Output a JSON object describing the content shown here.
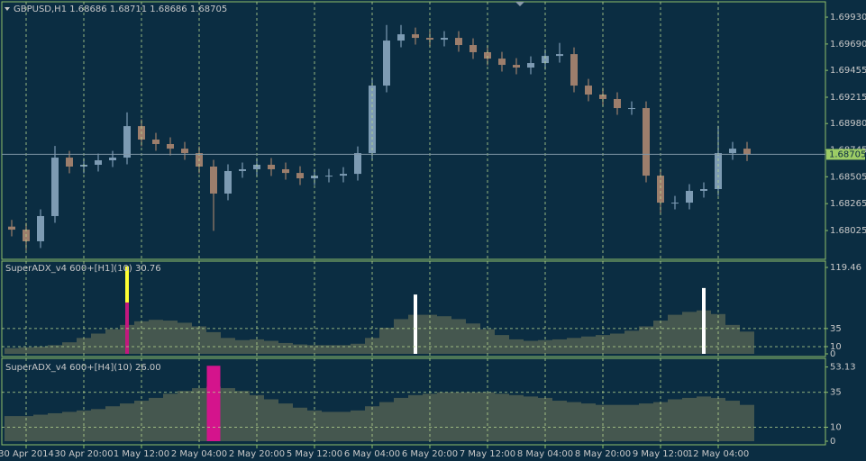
{
  "chart_data": [
    {
      "type": "candlestick",
      "title": "GBPUSD,H1  1.68686 1.68711 1.68686 1.68705",
      "categories": [
        null,
        "30 Apr 2014",
        null,
        null,
        null,
        "30 Apr 20:00",
        null,
        null,
        null,
        "1 May 12:00",
        null,
        null,
        null,
        "2 May 04:00",
        null,
        null,
        null,
        "2 May 20:00",
        null,
        null,
        null,
        "5 May 12:00",
        null,
        null,
        null,
        "6 May 04:00",
        null,
        null,
        null,
        "6 May 20:00",
        null,
        null,
        null,
        "7 May 12:00",
        null,
        null,
        null,
        "8 May 04:00",
        null,
        null,
        null,
        "8 May 20:00",
        null,
        null,
        null,
        "9 May 12:00",
        null,
        null,
        null,
        "12 May 04:00",
        null,
        null
      ],
      "open": [
        1.6806,
        1.68033,
        1.67929,
        1.68154,
        1.68676,
        1.68596,
        1.68612,
        1.68652,
        1.68676,
        1.68957,
        1.68837,
        1.68797,
        1.68756,
        1.68716,
        1.68596,
        1.68355,
        1.68556,
        1.68572,
        1.68612,
        1.68572,
        1.68539,
        1.68491,
        1.68515,
        1.68515,
        1.68531,
        1.68716,
        1.69319,
        1.69721,
        1.69777,
        1.69745,
        1.69729,
        1.69745,
        1.69681,
        1.69617,
        1.6956,
        1.69504,
        1.6948,
        1.6952,
        1.69584,
        1.696,
        1.69319,
        1.69239,
        1.69199,
        1.69118,
        1.69118,
        1.68515,
        1.68274,
        1.68274,
        1.68379,
        1.68395,
        1.68716,
        1.68756
      ],
      "high": [
        1.6812,
        1.68093,
        1.68214,
        1.6878,
        1.68736,
        1.68672,
        1.68712,
        1.68736,
        1.6908,
        1.69017,
        1.68897,
        1.68857,
        1.68816,
        1.68776,
        1.68656,
        1.68616,
        1.68632,
        1.68672,
        1.68672,
        1.68632,
        1.68599,
        1.68575,
        1.68575,
        1.68591,
        1.68776,
        1.69379,
        1.6986,
        1.6986,
        1.69837,
        1.69805,
        1.69805,
        1.69805,
        1.69741,
        1.69677,
        1.6962,
        1.69564,
        1.6958,
        1.69644,
        1.697,
        1.6966,
        1.69379,
        1.69299,
        1.69259,
        1.69178,
        1.69178,
        1.68575,
        1.68334,
        1.68439,
        1.68455,
        1.6896,
        1.68816,
        1.68816
      ],
      "low": [
        1.67973,
        1.6785,
        1.67869,
        1.68094,
        1.68536,
        1.68536,
        1.68552,
        1.68592,
        1.68616,
        1.68777,
        1.68737,
        1.68696,
        1.68656,
        1.68536,
        1.68022,
        1.68295,
        1.68496,
        1.68512,
        1.68512,
        1.68479,
        1.68431,
        1.68431,
        1.68455,
        1.68455,
        1.68471,
        1.68656,
        1.69259,
        1.69661,
        1.69685,
        1.69669,
        1.69669,
        1.69621,
        1.69557,
        1.695,
        1.69444,
        1.6942,
        1.6942,
        1.6946,
        1.69524,
        1.69259,
        1.69179,
        1.69139,
        1.69058,
        1.69058,
        1.68455,
        1.6818,
        1.68214,
        1.68214,
        1.68319,
        1.68335,
        1.68656,
        1.68645
      ],
      "close": [
        1.68033,
        1.67929,
        1.68154,
        1.68676,
        1.68596,
        1.68612,
        1.68652,
        1.68676,
        1.68957,
        1.68837,
        1.68797,
        1.68756,
        1.68716,
        1.68596,
        1.68355,
        1.68556,
        1.68572,
        1.68612,
        1.68572,
        1.68539,
        1.68491,
        1.68515,
        1.68515,
        1.68531,
        1.68716,
        1.69319,
        1.69721,
        1.69777,
        1.69745,
        1.69729,
        1.69745,
        1.69681,
        1.69617,
        1.6956,
        1.69504,
        1.6948,
        1.6952,
        1.69584,
        1.696,
        1.69319,
        1.69239,
        1.69199,
        1.69118,
        1.69118,
        1.68515,
        1.68274,
        1.68274,
        1.68379,
        1.68395,
        1.68716,
        1.68756,
        1.68705
      ],
      "up_color": "#7d9bb3",
      "down_color": "#9c7e6c",
      "current": 1.68705,
      "current_color": "#9ccc65",
      "ylim": [
        1.67768,
        1.70067
      ],
      "yticks": [
        {
          "value": 1.6993,
          "label": "1.69930"
        },
        {
          "value": 1.6969,
          "label": "1.69690"
        },
        1.69455,
        1.69215,
        {
          "value": 1.6898,
          "label": "1.68980"
        },
        1.68745,
        1.68505,
        1.68265,
        1.68025
      ]
    },
    {
      "type": "histogram",
      "title": "SuperADX_v4 600+[H1](10) 30.76",
      "color": "#45574f",
      "values": [
        8,
        9,
        10,
        12,
        16,
        22,
        28,
        34,
        40,
        45,
        47,
        46,
        43,
        38,
        30,
        22,
        19,
        20,
        18,
        15,
        13,
        12,
        12,
        12,
        14,
        22,
        36,
        48,
        54,
        54,
        52,
        48,
        42,
        34,
        26,
        20,
        18,
        19,
        20,
        22,
        24,
        26,
        28,
        32,
        38,
        46,
        54,
        58,
        60,
        55,
        40,
        30.76
      ],
      "signals": [
        {
          "x": 8,
          "value": 71,
          "color": "#c2187e"
        },
        {
          "x": 8,
          "value": 50,
          "color": "#ffff33"
        },
        {
          "x": 28,
          "value": 82,
          "color": "#ffffff"
        },
        {
          "x": 48,
          "value": 91,
          "color": "#ffffff"
        }
      ],
      "ylim": [
        0,
        119.46
      ],
      "yticks": [
        119.46,
        35,
        10,
        0
      ]
    },
    {
      "type": "histogram",
      "title": "SuperADX_v4 600+[H4](10) 26.00",
      "color": "#45574f",
      "values": [
        18,
        18,
        19,
        20,
        21,
        22,
        23,
        25,
        27,
        29,
        31,
        34,
        36,
        38,
        39,
        38,
        36,
        33,
        30,
        27,
        24,
        22,
        21,
        21,
        22,
        25,
        28,
        31,
        33,
        34,
        35,
        35,
        35,
        35,
        34,
        33,
        32,
        31,
        29,
        28,
        27,
        26,
        26,
        26,
        27,
        28,
        30,
        31,
        32,
        31,
        29,
        26
      ],
      "signals": [
        {
          "x": 14,
          "value": 54,
          "color": "#d4148c"
        }
      ],
      "ylim": [
        0,
        53.13
      ],
      "yticks": [
        53.13,
        35,
        10,
        0
      ]
    }
  ]
}
